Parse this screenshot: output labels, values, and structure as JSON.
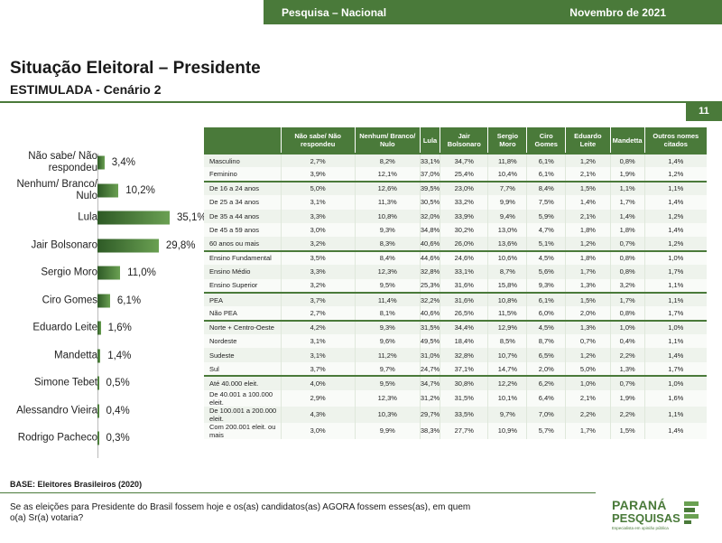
{
  "header": {
    "left": "Pesquisa – Nacional",
    "right": "Novembro de 2021",
    "color": "#4a7a3a"
  },
  "title": "Situação Eleitoral – Presidente",
  "subtitle": "ESTIMULADA - Cenário 2",
  "page_number": "11",
  "chart_data": {
    "type": "bar",
    "orientation": "horizontal",
    "categories": [
      "Não sabe/ Não respondeu",
      "Nenhum/ Branco/ Nulo",
      "Lula",
      "Jair Bolsonaro",
      "Sergio Moro",
      "Ciro Gomes",
      "Eduardo Leite",
      "Mandetta",
      "Simone Tebet",
      "Alessandro Vieira",
      "Rodrigo Pacheco"
    ],
    "values": [
      3.4,
      10.2,
      35.1,
      29.8,
      11.0,
      6.1,
      1.6,
      1.4,
      0.5,
      0.4,
      0.3
    ],
    "value_labels": [
      "3,4%",
      "10,2%",
      "35,1%",
      "29,8%",
      "11,0%",
      "6,1%",
      "1,6%",
      "1,4%",
      "0,5%",
      "0,4%",
      "0,3%"
    ],
    "xlim": [
      0,
      40
    ]
  },
  "table": {
    "columns": [
      "Não sabe/ Não respondeu",
      "Nenhum/ Branco/ Nulo",
      "Lula",
      "Jair Bolsonaro",
      "Sergio Moro",
      "Ciro Gomes",
      "Eduardo Leite",
      "Mandetta",
      "Outros nomes citados"
    ],
    "groups": [
      {
        "rows": [
          {
            "label": "Masculino",
            "values": [
              "2,7%",
              "8,2%",
              "33,1%",
              "34,7%",
              "11,8%",
              "6,1%",
              "1,2%",
              "0,8%",
              "1,4%"
            ]
          },
          {
            "label": "Feminino",
            "values": [
              "3,9%",
              "12,1%",
              "37,0%",
              "25,4%",
              "10,4%",
              "6,1%",
              "2,1%",
              "1,9%",
              "1,2%"
            ]
          }
        ]
      },
      {
        "rows": [
          {
            "label": "De 16 a 24 anos",
            "values": [
              "5,0%",
              "12,6%",
              "39,5%",
              "23,0%",
              "7,7%",
              "8,4%",
              "1,5%",
              "1,1%",
              "1,1%"
            ]
          },
          {
            "label": "De 25 a 34 anos",
            "values": [
              "3,1%",
              "11,3%",
              "30,5%",
              "33,2%",
              "9,9%",
              "7,5%",
              "1,4%",
              "1,7%",
              "1,4%"
            ]
          },
          {
            "label": "De 35 a 44 anos",
            "values": [
              "3,3%",
              "10,8%",
              "32,0%",
              "33,9%",
              "9,4%",
              "5,9%",
              "2,1%",
              "1,4%",
              "1,2%"
            ]
          },
          {
            "label": "De 45 a 59 anos",
            "values": [
              "3,0%",
              "9,3%",
              "34,8%",
              "30,2%",
              "13,0%",
              "4,7%",
              "1,8%",
              "1,8%",
              "1,4%"
            ]
          },
          {
            "label": "60 anos ou mais",
            "values": [
              "3,2%",
              "8,3%",
              "40,6%",
              "26,0%",
              "13,6%",
              "5,1%",
              "1,2%",
              "0,7%",
              "1,2%"
            ]
          }
        ]
      },
      {
        "rows": [
          {
            "label": "Ensino Fundamental",
            "values": [
              "3,5%",
              "8,4%",
              "44,6%",
              "24,6%",
              "10,6%",
              "4,5%",
              "1,8%",
              "0,8%",
              "1,0%"
            ]
          },
          {
            "label": "Ensino Médio",
            "values": [
              "3,3%",
              "12,3%",
              "32,8%",
              "33,1%",
              "8,7%",
              "5,6%",
              "1,7%",
              "0,8%",
              "1,7%"
            ]
          },
          {
            "label": "Ensino Superior",
            "values": [
              "3,2%",
              "9,5%",
              "25,3%",
              "31,6%",
              "15,8%",
              "9,3%",
              "1,3%",
              "3,2%",
              "1,1%"
            ]
          }
        ]
      },
      {
        "rows": [
          {
            "label": "PEA",
            "values": [
              "3,7%",
              "11,4%",
              "32,2%",
              "31,6%",
              "10,8%",
              "6,1%",
              "1,5%",
              "1,7%",
              "1,1%"
            ]
          },
          {
            "label": "Não PEA",
            "values": [
              "2,7%",
              "8,1%",
              "40,6%",
              "26,5%",
              "11,5%",
              "6,0%",
              "2,0%",
              "0,8%",
              "1,7%"
            ]
          }
        ]
      },
      {
        "rows": [
          {
            "label": "Norte + Centro-Oeste",
            "values": [
              "4,2%",
              "9,3%",
              "31,5%",
              "34,4%",
              "12,9%",
              "4,5%",
              "1,3%",
              "1,0%",
              "1,0%"
            ]
          },
          {
            "label": "Nordeste",
            "values": [
              "3,1%",
              "9,6%",
              "49,5%",
              "18,4%",
              "8,5%",
              "8,7%",
              "0,7%",
              "0,4%",
              "1,1%"
            ]
          },
          {
            "label": "Sudeste",
            "values": [
              "3,1%",
              "11,2%",
              "31,0%",
              "32,8%",
              "10,7%",
              "6,5%",
              "1,2%",
              "2,2%",
              "1,4%"
            ]
          },
          {
            "label": "Sul",
            "values": [
              "3,7%",
              "9,7%",
              "24,7%",
              "37,1%",
              "14,7%",
              "2,0%",
              "5,0%",
              "1,3%",
              "1,7%"
            ]
          }
        ]
      },
      {
        "rows": [
          {
            "label": "Até 40.000 eleit.",
            "values": [
              "4,0%",
              "9,5%",
              "34,7%",
              "30,8%",
              "12,2%",
              "6,2%",
              "1,0%",
              "0,7%",
              "1,0%"
            ]
          },
          {
            "label": "De 40.001 a 100.000 eleit.",
            "values": [
              "2,9%",
              "12,3%",
              "31,2%",
              "31,5%",
              "10,1%",
              "6,4%",
              "2,1%",
              "1,9%",
              "1,6%"
            ]
          },
          {
            "label": "De 100.001 a 200.000 eleit.",
            "values": [
              "4,3%",
              "10,3%",
              "29,7%",
              "33,5%",
              "9,7%",
              "7,0%",
              "2,2%",
              "2,2%",
              "1,1%"
            ]
          },
          {
            "label": "Com 200.001 eleit. ou mais",
            "values": [
              "3,0%",
              "9,9%",
              "38,3%",
              "27,7%",
              "10,9%",
              "5,7%",
              "1,7%",
              "1,5%",
              "1,4%"
            ]
          }
        ]
      }
    ]
  },
  "base": "BASE: Eleitores Brasileiros  (2020)",
  "question": "Se as eleições para Presidente do Brasil fossem hoje e os(as) candidatos(as) AGORA fossem esses(as), em quem o(a) Sr(a) votaria?",
  "logo": {
    "line1": "PARANÁ",
    "line2": "PESQUISAS",
    "tagline": "Especialista em opinião pública"
  }
}
